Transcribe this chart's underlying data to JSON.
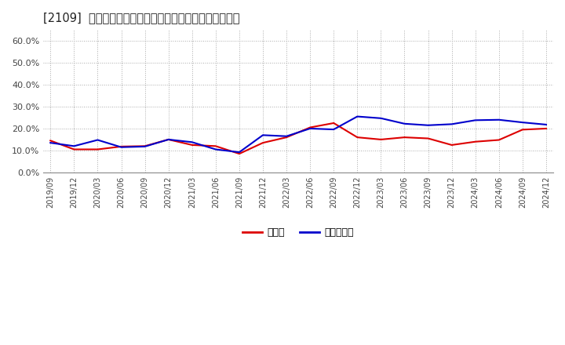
{
  "title": "[2109]  現預金、有利子負債の総資産に対する比率の推移",
  "x_labels": [
    "2019/09",
    "2019/12",
    "2020/03",
    "2020/06",
    "2020/09",
    "2020/12",
    "2021/03",
    "2021/06",
    "2021/09",
    "2021/12",
    "2022/03",
    "2022/06",
    "2022/09",
    "2022/12",
    "2023/03",
    "2023/06",
    "2023/09",
    "2023/12",
    "2024/03",
    "2024/06",
    "2024/09",
    "2024/12"
  ],
  "cash": [
    0.145,
    0.105,
    0.105,
    0.118,
    0.12,
    0.15,
    0.125,
    0.12,
    0.085,
    0.135,
    0.16,
    0.205,
    0.225,
    0.16,
    0.15,
    0.16,
    0.155,
    0.125,
    0.14,
    0.148,
    0.195,
    0.2
  ],
  "debt": [
    0.135,
    0.12,
    0.148,
    0.115,
    0.118,
    0.15,
    0.138,
    0.105,
    0.092,
    0.17,
    0.165,
    0.2,
    0.196,
    0.255,
    0.247,
    0.222,
    0.215,
    0.22,
    0.238,
    0.24,
    0.228,
    0.218
  ],
  "cash_color": "#dd0000",
  "debt_color": "#0000cc",
  "bg_color": "#ffffff",
  "plot_bg_color": "#ffffff",
  "legend_cash": "現預金",
  "legend_debt": "有利子負債",
  "ylim": [
    0.0,
    0.65
  ],
  "yticks": [
    0.0,
    0.1,
    0.2,
    0.3,
    0.4,
    0.5,
    0.6
  ]
}
